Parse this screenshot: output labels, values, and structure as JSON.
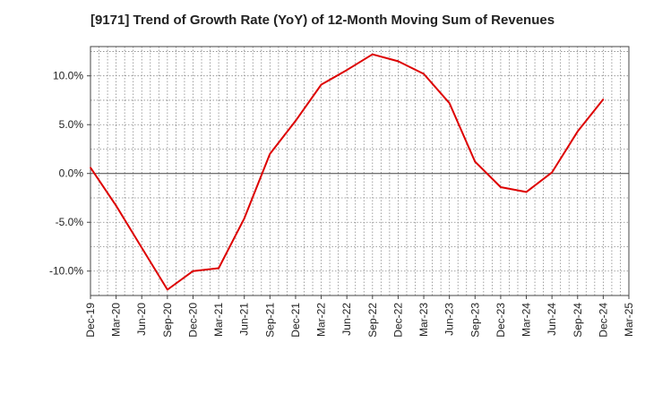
{
  "chart_data": {
    "type": "line",
    "title": "[9171]  Trend of Growth Rate (YoY) of 12-Month Moving Sum of Revenues",
    "xlabel": "",
    "ylabel": "",
    "x_tick_labels": [
      "Dec-19",
      "Mar-20",
      "Jun-20",
      "Sep-20",
      "Dec-20",
      "Mar-21",
      "Jun-21",
      "Sep-21",
      "Dec-21",
      "Mar-22",
      "Jun-22",
      "Sep-22",
      "Dec-22",
      "Mar-23",
      "Jun-23",
      "Sep-23",
      "Dec-23",
      "Mar-24",
      "Jun-24",
      "Sep-24",
      "Dec-24",
      "Mar-25"
    ],
    "y_ticks": [
      -10,
      -5,
      0,
      5,
      10
    ],
    "y_tick_labels": [
      "-10.0%",
      "-5.0%",
      "0.0%",
      "5.0%",
      "10.0%"
    ],
    "ylim": [
      -12.5,
      13
    ],
    "grid": true,
    "series": [
      {
        "color": "#dd0000",
        "x": [
          "Dec-19",
          "Mar-20",
          "Jun-20",
          "Sep-20",
          "Dec-20",
          "Mar-21",
          "Jun-21",
          "Sep-21",
          "Dec-21",
          "Mar-22",
          "Jun-22",
          "Sep-22",
          "Dec-22",
          "Mar-23",
          "Jun-23",
          "Sep-23",
          "Dec-23",
          "Mar-24",
          "Jun-24",
          "Sep-24",
          "Dec-24"
        ],
        "values": [
          0.6,
          -3.3,
          -7.6,
          -11.9,
          -10.0,
          -9.7,
          -4.6,
          2.0,
          5.4,
          9.1,
          10.6,
          12.2,
          11.5,
          10.2,
          7.2,
          1.2,
          -1.4,
          -1.9,
          0.1,
          4.3,
          7.6
        ]
      }
    ]
  }
}
